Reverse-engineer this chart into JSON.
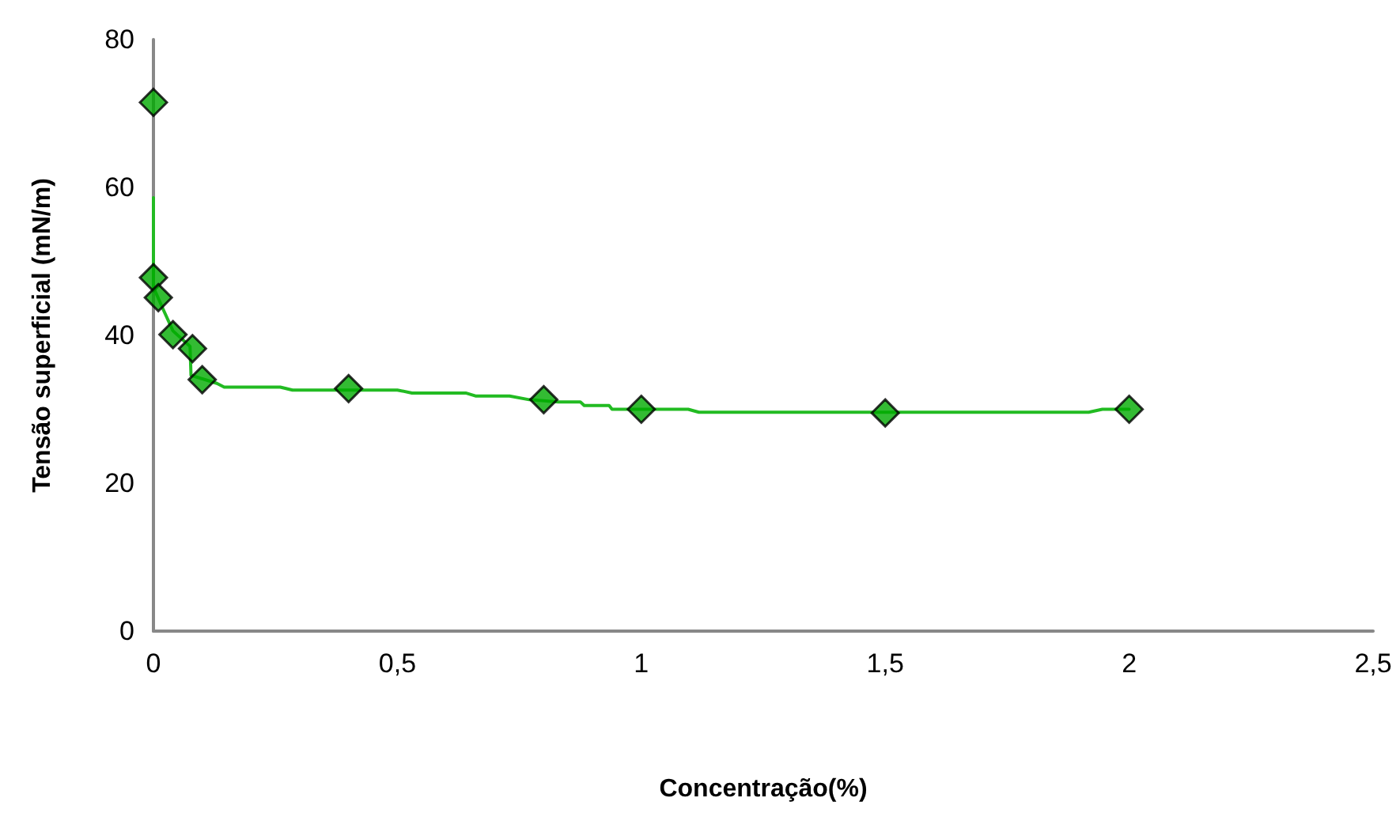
{
  "chart_data": {
    "type": "scatter",
    "xlabel": "Concentração(%)",
    "ylabel": "Tensão superficial (mN/m)",
    "xlim": [
      0,
      2.5
    ],
    "xticks": [
      0,
      {
        "value": 0.5,
        "label": "0,5"
      },
      1,
      {
        "value": 1.5,
        "label": "1,5"
      },
      2,
      {
        "value": 2.5,
        "label": "2,5"
      }
    ],
    "ylim": [
      0,
      80
    ],
    "yticks": [
      0,
      20,
      40,
      60,
      80
    ],
    "grid": false,
    "series": [
      {
        "type": "line",
        "color": "#22bb22",
        "marker": "none",
        "line_style": "solid",
        "x": [
          0,
          0,
          0.02,
          0.04,
          0.075,
          0.077,
          0.13,
          0.145,
          0.26,
          0.285,
          0.5,
          0.53,
          0.64,
          0.66,
          0.73,
          0.77,
          0.83,
          0.875,
          0.883,
          0.934,
          0.94,
          1.096,
          1.118,
          1.917,
          1.945,
          2
        ],
        "values": [
          58.6,
          46.5,
          43.5,
          40.6,
          38.5,
          34.6,
          33.5,
          33.0,
          33.0,
          32.6,
          32.6,
          32.2,
          32.2,
          31.8,
          31.8,
          31.3,
          31.0,
          31.0,
          30.5,
          30.5,
          30.0,
          30.0,
          29.6,
          29.6,
          30.0,
          30.0
        ]
      },
      {
        "color": "#00aa00",
        "marker": "diamond",
        "x": [
          0,
          0,
          0.01,
          0.04,
          0.08,
          0.1,
          0.4,
          0.8,
          1,
          1.5,
          2
        ],
        "values": [
          71.5,
          47.8,
          45.1,
          40.1,
          38.2,
          34.0,
          32.8,
          31.3,
          30.0,
          29.5,
          30.0
        ]
      }
    ]
  }
}
